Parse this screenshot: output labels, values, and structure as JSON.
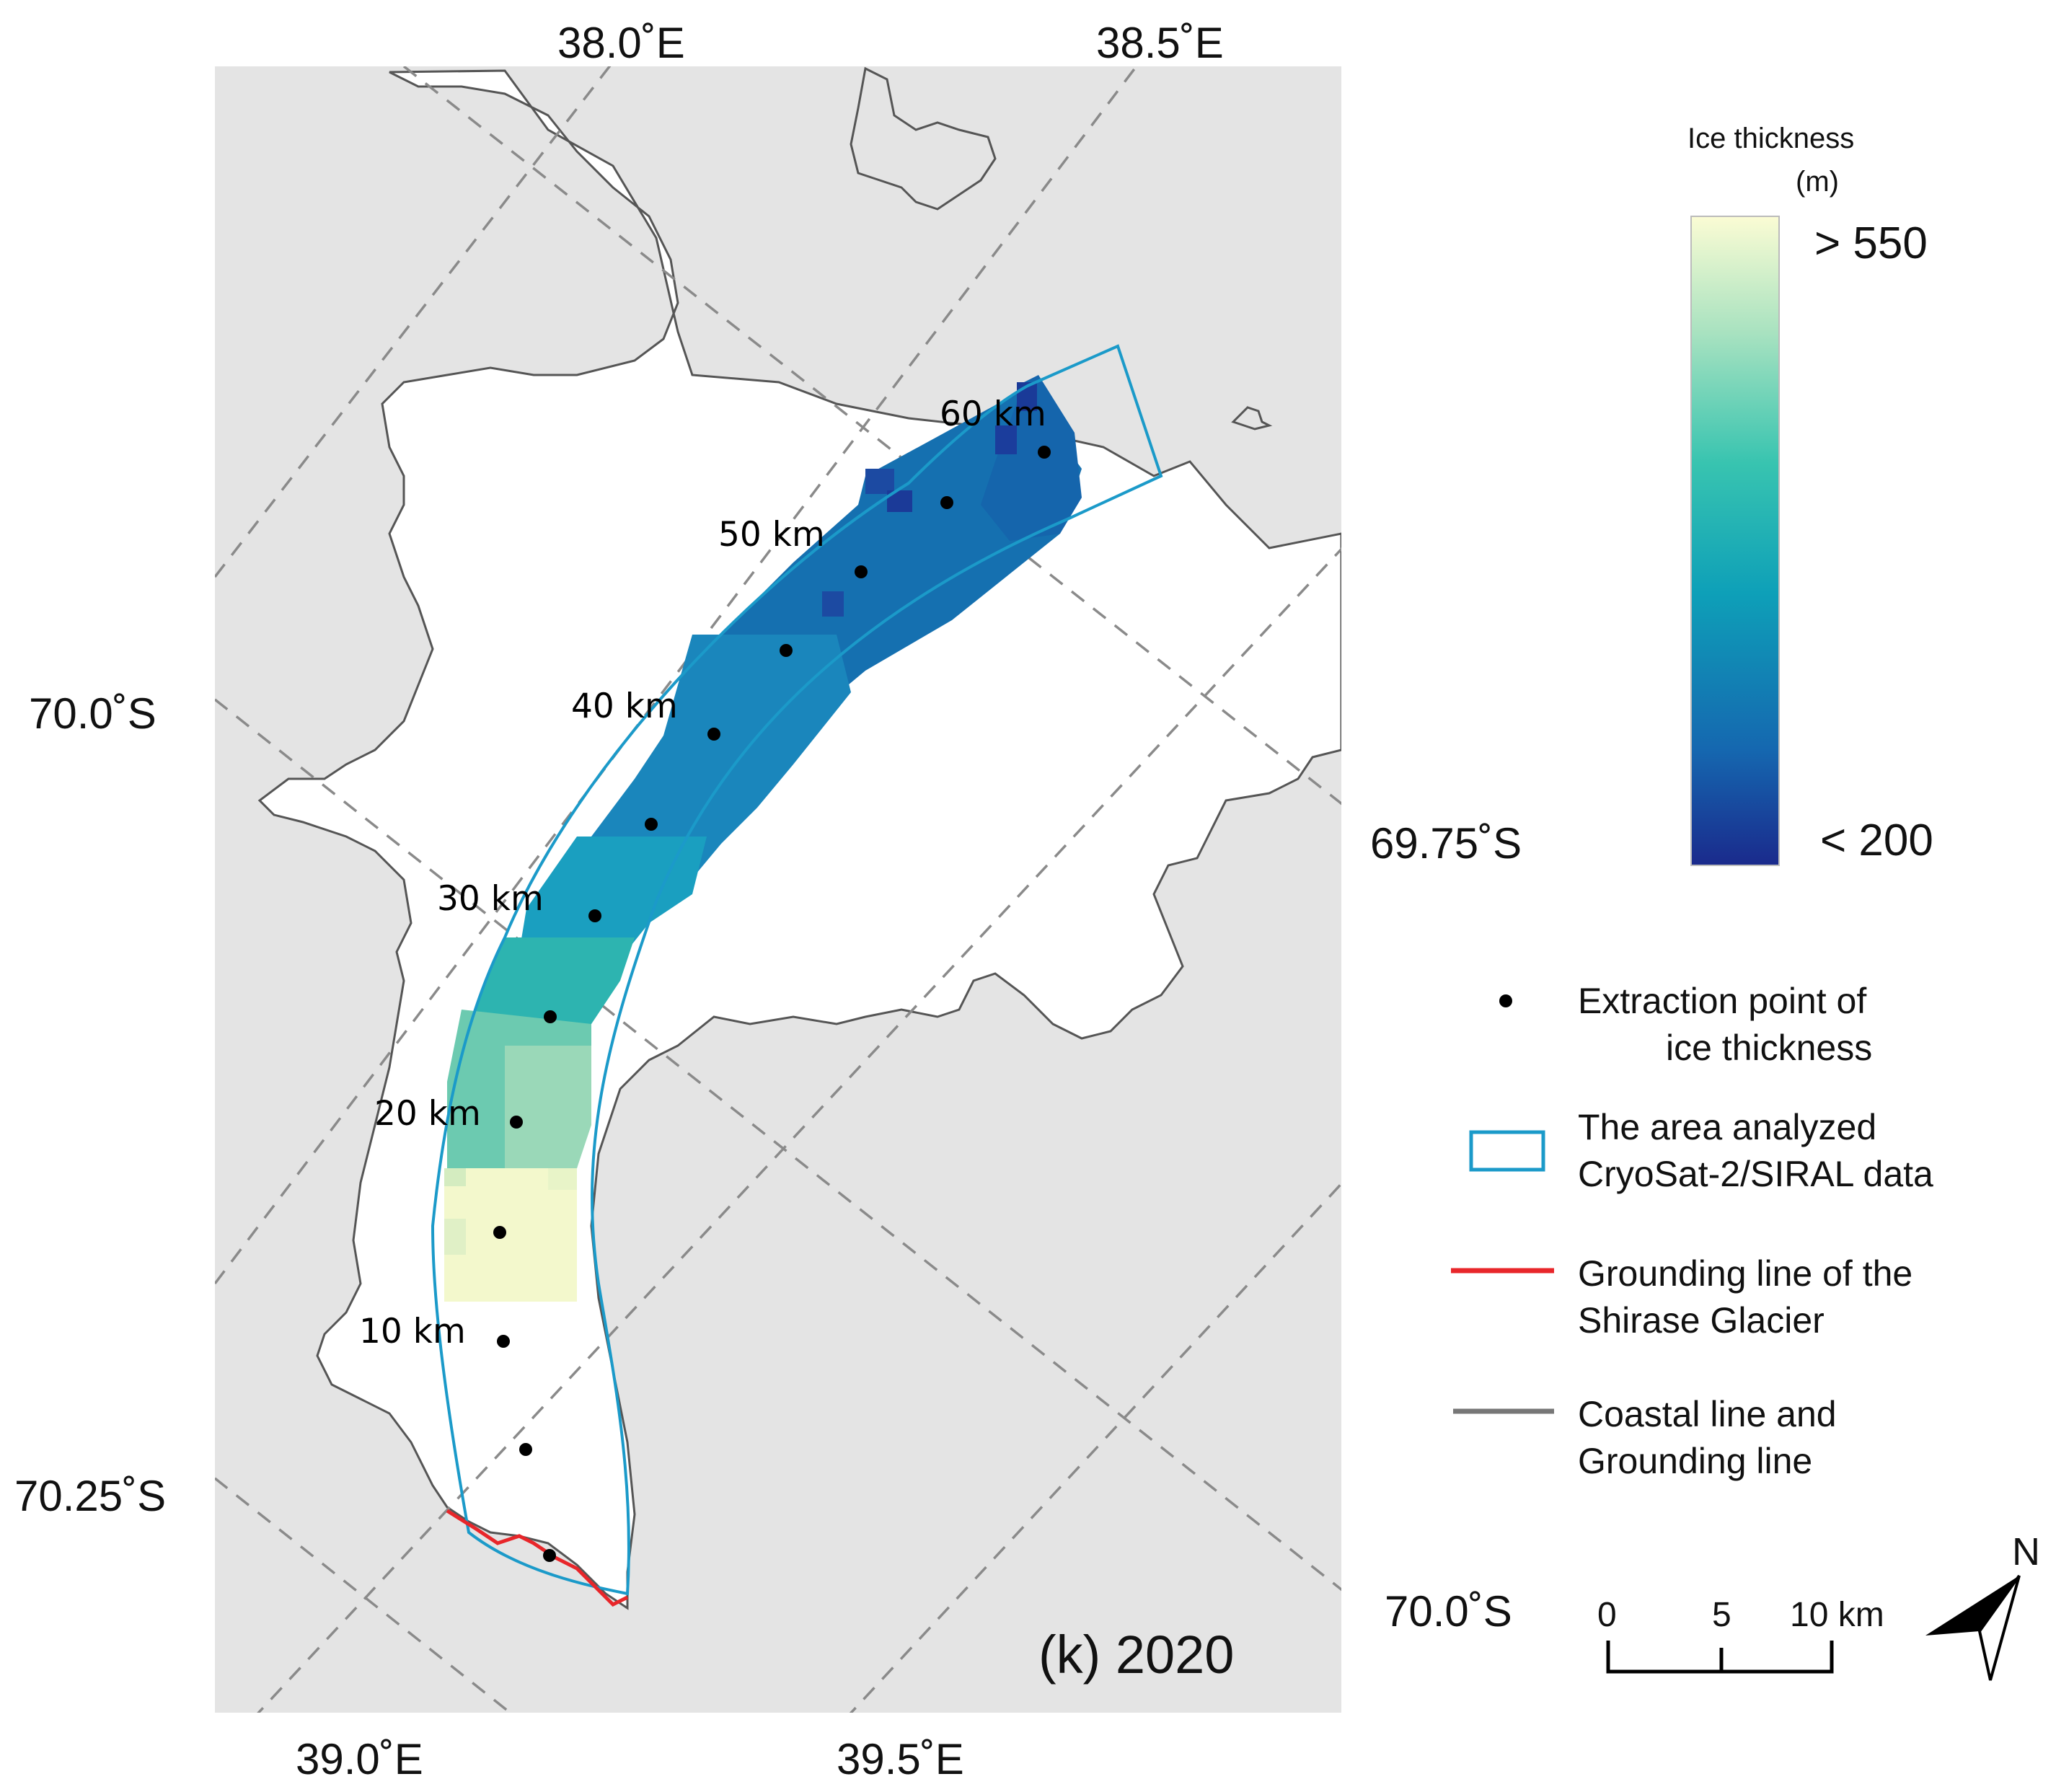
{
  "axes": {
    "top_lon": [
      "38.0˚E",
      "38.5˚E"
    ],
    "bottom_lon": [
      "39.0˚E",
      "39.5˚E"
    ],
    "left_lat": [
      "70.0˚S",
      "70.25˚S"
    ],
    "right_lat": [
      "69.75˚S",
      "70.0˚S"
    ]
  },
  "distance_labels": [
    "60 km",
    "50 km",
    "40 km",
    "30 km",
    "20 km",
    "10 km"
  ],
  "panel_label": "(k) 2020",
  "colorbar": {
    "title": "Ice thickness",
    "unit": "(m)",
    "max_label": "> 550",
    "min_label": "< 200",
    "low_color": "#1a2a8c",
    "mid_color": "#0ea0b8",
    "high_color": "#fbfcd4"
  },
  "legend": {
    "point_line1": "Extraction point of",
    "point_line2": "ice thickness",
    "area_line1": "The area analyzed",
    "area_line2": "CryoSat-2/SIRAL data",
    "grounding_line1": "Grounding line of the",
    "grounding_line2": "Shirase Glacier",
    "coast_line1": "Coastal line and",
    "coast_line2": "Grounding line"
  },
  "scalebar": {
    "ticks": [
      "0",
      "5",
      "10 km"
    ]
  },
  "north_arrow": {
    "label": "N"
  },
  "colors": {
    "land": "#e4e4e4",
    "area_outline": "#1b9ac9",
    "grounding_line": "#e8262a",
    "coast": "#555555"
  }
}
